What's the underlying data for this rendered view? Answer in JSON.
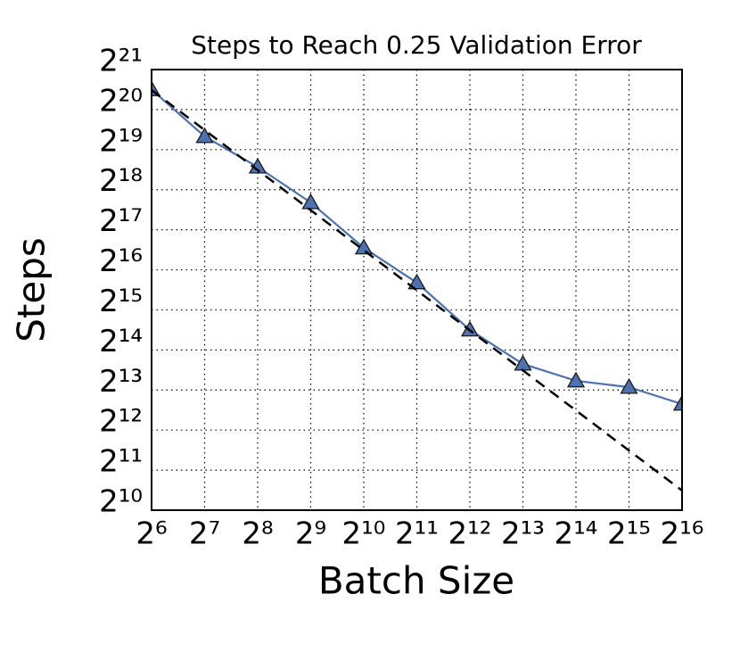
{
  "chart_data": {
    "type": "line",
    "title": "Steps to Reach 0.25 Validation Error",
    "x_label": "Batch Size",
    "y_label": "Steps",
    "xscale": "log",
    "yscale": "log",
    "x": [
      64,
      128,
      256,
      512,
      1024,
      2048,
      4096,
      8192,
      16384,
      32768,
      65536
    ],
    "series": [
      {
        "color": "#4c72b0",
        "marker": "triangle",
        "linestyle": "solid",
        "values": [
          1482910,
          659030,
          389153,
          209977,
          95945,
          52494,
          23170,
          12853,
          9607,
          8599,
          6427
        ]
      },
      {
        "color": "#000000",
        "marker": "none",
        "linestyle": "dashed",
        "values": [
          1472512,
          736256,
          368128,
          184064,
          92032,
          46016,
          23008,
          11504,
          5752,
          2876,
          1438
        ]
      }
    ],
    "xlim": [
      64,
      65536
    ],
    "ylim": [
      1024,
      2097152
    ],
    "xticks": [
      {
        "value": 64,
        "label": "2⁶"
      },
      {
        "value": 128,
        "label": "2⁷"
      },
      {
        "value": 256,
        "label": "2⁸"
      },
      {
        "value": 512,
        "label": "2⁹"
      },
      {
        "value": 1024,
        "label": "2¹⁰"
      },
      {
        "value": 2048,
        "label": "2¹¹"
      },
      {
        "value": 4096,
        "label": "2¹²"
      },
      {
        "value": 8192,
        "label": "2¹³"
      },
      {
        "value": 16384,
        "label": "2¹⁴"
      },
      {
        "value": 32768,
        "label": "2¹⁵"
      },
      {
        "value": 65536,
        "label": "2¹⁶"
      }
    ],
    "yticks": [
      {
        "value": 1024,
        "label": "2¹⁰"
      },
      {
        "value": 2048,
        "label": "2¹¹"
      },
      {
        "value": 4096,
        "label": "2¹²"
      },
      {
        "value": 8192,
        "label": "2¹³"
      },
      {
        "value": 16384,
        "label": "2¹⁴"
      },
      {
        "value": 32768,
        "label": "2¹⁵"
      },
      {
        "value": 65536,
        "label": "2¹⁶"
      },
      {
        "value": 131072,
        "label": "2¹⁷"
      },
      {
        "value": 262144,
        "label": "2¹⁸"
      },
      {
        "value": 524288,
        "label": "2¹⁹"
      },
      {
        "value": 1048576,
        "label": "2²⁰"
      },
      {
        "value": 2097152,
        "label": "2²¹"
      }
    ],
    "grid": true
  }
}
